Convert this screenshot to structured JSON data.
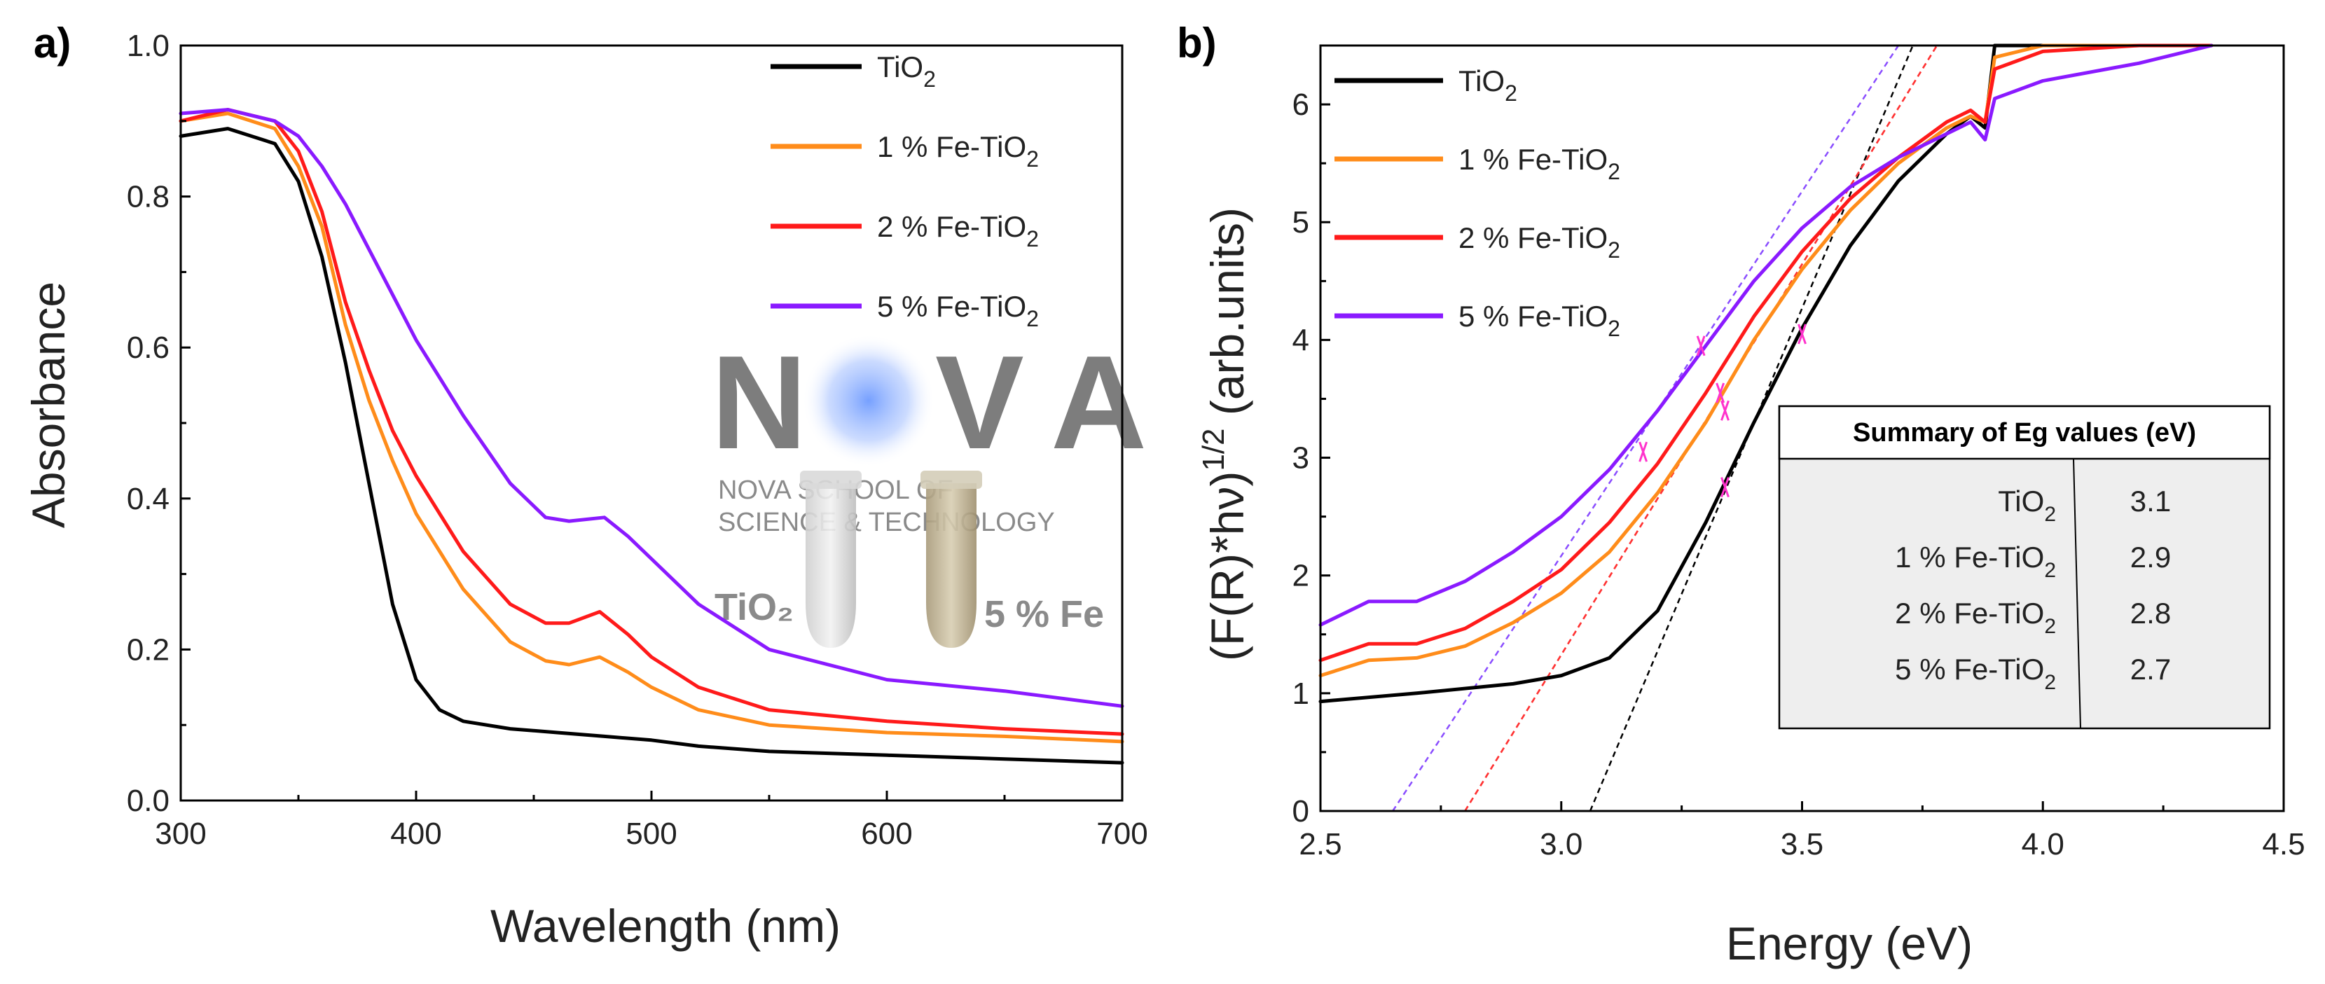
{
  "panels": {
    "a": {
      "label": "a)",
      "watermark": {
        "logo_letters": [
          "N",
          "V",
          "A"
        ],
        "school_line1": "NOVA SCHOOL OF",
        "school_line2": "SCIENCE & TECHNOLOGY",
        "vial_left_label": "TiO₂",
        "vial_right_label": "5 % Fe"
      }
    },
    "b": {
      "label": "b)",
      "ylabel_main": "(F(R)*hν)",
      "ylabel_sup": "1/2",
      "ylabel_units": " (arb.units)",
      "summary_table": {
        "title": "Summary of Eg values (eV)",
        "rows": [
          {
            "sample": "TiO",
            "sub": "2",
            "suffix": "",
            "eg": "3.1"
          },
          {
            "sample": "1 % Fe-TiO",
            "sub": "2",
            "suffix": "",
            "eg": "2.9"
          },
          {
            "sample": "2 % Fe-TiO",
            "sub": "2",
            "suffix": "",
            "eg": "2.8"
          },
          {
            "sample": "5 % Fe-TiO",
            "sub": "2",
            "suffix": "",
            "eg": "2.7"
          }
        ]
      }
    }
  },
  "chart_data": [
    {
      "type": "line",
      "title": "",
      "xlabel": "Wavelength (nm)",
      "ylabel": "Absorbance",
      "xlim": [
        300,
        700
      ],
      "ylim": [
        0.0,
        1.0
      ],
      "xticks": [
        300,
        400,
        500,
        600,
        700
      ],
      "xtick_labels": [
        "300",
        "400",
        "500",
        "600",
        "700"
      ],
      "yticks": [
        0.0,
        0.2,
        0.4,
        0.6,
        0.8,
        1.0
      ],
      "ytick_labels": [
        "0.0",
        "0.2",
        "0.4",
        "0.6",
        "0.8",
        "1.0"
      ],
      "legend_position": "top-right",
      "series": [
        {
          "name": "TiO",
          "sub": "2",
          "color": "#000000",
          "x": [
            300,
            320,
            340,
            350,
            360,
            370,
            380,
            390,
            400,
            410,
            420,
            440,
            460,
            480,
            500,
            520,
            550,
            600,
            650,
            700
          ],
          "y": [
            0.88,
            0.89,
            0.87,
            0.82,
            0.72,
            0.58,
            0.42,
            0.26,
            0.16,
            0.12,
            0.105,
            0.095,
            0.09,
            0.085,
            0.08,
            0.072,
            0.065,
            0.06,
            0.055,
            0.05
          ]
        },
        {
          "name": "1 % Fe-TiO",
          "sub": "2",
          "color": "#ff8c1a",
          "x": [
            300,
            320,
            340,
            350,
            360,
            370,
            380,
            390,
            400,
            420,
            440,
            455,
            465,
            478,
            490,
            500,
            520,
            550,
            600,
            650,
            700
          ],
          "y": [
            0.9,
            0.91,
            0.89,
            0.84,
            0.76,
            0.63,
            0.53,
            0.45,
            0.38,
            0.28,
            0.21,
            0.185,
            0.18,
            0.19,
            0.17,
            0.15,
            0.12,
            0.1,
            0.09,
            0.085,
            0.078
          ]
        },
        {
          "name": "2 % Fe-TiO",
          "sub": "2",
          "color": "#ff1a1a",
          "x": [
            300,
            320,
            340,
            350,
            360,
            370,
            380,
            390,
            400,
            420,
            440,
            455,
            465,
            478,
            490,
            500,
            520,
            550,
            600,
            650,
            700
          ],
          "y": [
            0.9,
            0.915,
            0.9,
            0.86,
            0.78,
            0.66,
            0.57,
            0.49,
            0.43,
            0.33,
            0.26,
            0.235,
            0.235,
            0.25,
            0.22,
            0.19,
            0.15,
            0.12,
            0.105,
            0.095,
            0.088
          ]
        },
        {
          "name": "5 % Fe-TiO",
          "sub": "2",
          "color": "#8a1aff",
          "x": [
            300,
            320,
            340,
            350,
            360,
            370,
            380,
            390,
            400,
            420,
            440,
            455,
            465,
            480,
            490,
            500,
            520,
            550,
            600,
            650,
            700
          ],
          "y": [
            0.91,
            0.915,
            0.9,
            0.88,
            0.84,
            0.79,
            0.73,
            0.67,
            0.61,
            0.51,
            0.42,
            0.375,
            0.37,
            0.375,
            0.35,
            0.32,
            0.26,
            0.2,
            0.16,
            0.145,
            0.125
          ]
        }
      ]
    },
    {
      "type": "line",
      "title": "",
      "xlabel": "Energy (eV)",
      "ylabel": "(F(R)*hν)^1/2 (arb.units)",
      "xlim": [
        2.5,
        4.5
      ],
      "ylim": [
        0,
        6.5
      ],
      "xticks": [
        2.5,
        3.0,
        3.5,
        4.0,
        4.5
      ],
      "xtick_labels": [
        "2.5",
        "3.0",
        "3.5",
        "4.0",
        "4.5"
      ],
      "yticks": [
        0,
        1,
        2,
        3,
        4,
        5,
        6
      ],
      "ytick_labels": [
        "0",
        "1",
        "2",
        "3",
        "4",
        "5",
        "6"
      ],
      "legend_position": "top-left",
      "series": [
        {
          "name": "TiO",
          "sub": "2",
          "color": "#000000",
          "x": [
            2.5,
            2.7,
            2.9,
            3.0,
            3.1,
            3.2,
            3.3,
            3.4,
            3.5,
            3.6,
            3.7,
            3.8,
            3.85,
            3.88,
            3.9,
            4.0,
            4.2,
            4.35
          ],
          "y": [
            0.93,
            1.0,
            1.08,
            1.15,
            1.3,
            1.7,
            2.45,
            3.3,
            4.1,
            4.8,
            5.35,
            5.75,
            5.9,
            5.8,
            6.5,
            6.5,
            6.5,
            6.5
          ]
        },
        {
          "name": "1 % Fe-TiO",
          "sub": "2",
          "color": "#ff8c1a",
          "x": [
            2.5,
            2.6,
            2.7,
            2.8,
            2.9,
            3.0,
            3.1,
            3.2,
            3.3,
            3.4,
            3.5,
            3.6,
            3.7,
            3.8,
            3.85,
            3.88,
            3.9,
            4.0,
            4.2,
            4.35
          ],
          "y": [
            1.15,
            1.28,
            1.3,
            1.4,
            1.6,
            1.85,
            2.2,
            2.7,
            3.3,
            4.0,
            4.6,
            5.1,
            5.5,
            5.8,
            5.9,
            5.85,
            6.4,
            6.5,
            6.5,
            6.5
          ]
        },
        {
          "name": "2 % Fe-TiO",
          "sub": "2",
          "color": "#ff1a1a",
          "x": [
            2.5,
            2.6,
            2.7,
            2.8,
            2.9,
            3.0,
            3.1,
            3.2,
            3.3,
            3.4,
            3.5,
            3.6,
            3.7,
            3.8,
            3.85,
            3.88,
            3.9,
            4.0,
            4.2,
            4.35
          ],
          "y": [
            1.28,
            1.42,
            1.42,
            1.55,
            1.78,
            2.05,
            2.45,
            2.95,
            3.55,
            4.2,
            4.75,
            5.2,
            5.55,
            5.85,
            5.95,
            5.85,
            6.3,
            6.45,
            6.5,
            6.5
          ]
        },
        {
          "name": "5 % Fe-TiO",
          "sub": "2",
          "color": "#8a1aff",
          "x": [
            2.5,
            2.6,
            2.7,
            2.8,
            2.9,
            3.0,
            3.1,
            3.2,
            3.3,
            3.4,
            3.5,
            3.6,
            3.7,
            3.8,
            3.85,
            3.88,
            3.9,
            4.0,
            4.2,
            4.35
          ],
          "y": [
            1.58,
            1.78,
            1.78,
            1.95,
            2.2,
            2.5,
            2.9,
            3.4,
            3.95,
            4.5,
            4.95,
            5.3,
            5.55,
            5.75,
            5.85,
            5.7,
            6.05,
            6.2,
            6.35,
            6.5
          ]
        }
      ],
      "tauc_fits": [
        {
          "color": "#000000",
          "x": [
            3.06,
            3.73
          ],
          "y": [
            0,
            6.5
          ]
        },
        {
          "color": "#ff3333",
          "x": [
            2.8,
            3.78
          ],
          "y": [
            0,
            6.5
          ]
        },
        {
          "color": "#ff3333",
          "x": [
            2.8,
            3.78
          ],
          "y": [
            0,
            6.5
          ],
          "note": "overlap"
        },
        {
          "color": "#8a4dff",
          "x": [
            2.65,
            3.7
          ],
          "y": [
            0,
            6.5
          ]
        }
      ],
      "fit_markers": [
        {
          "x": 3.17,
          "y": 3.05
        },
        {
          "x": 3.29,
          "y": 3.95
        },
        {
          "x": 3.33,
          "y": 3.55
        },
        {
          "x": 3.34,
          "y": 3.4
        },
        {
          "x": 3.34,
          "y": 2.75
        },
        {
          "x": 3.5,
          "y": 4.05
        }
      ]
    }
  ]
}
